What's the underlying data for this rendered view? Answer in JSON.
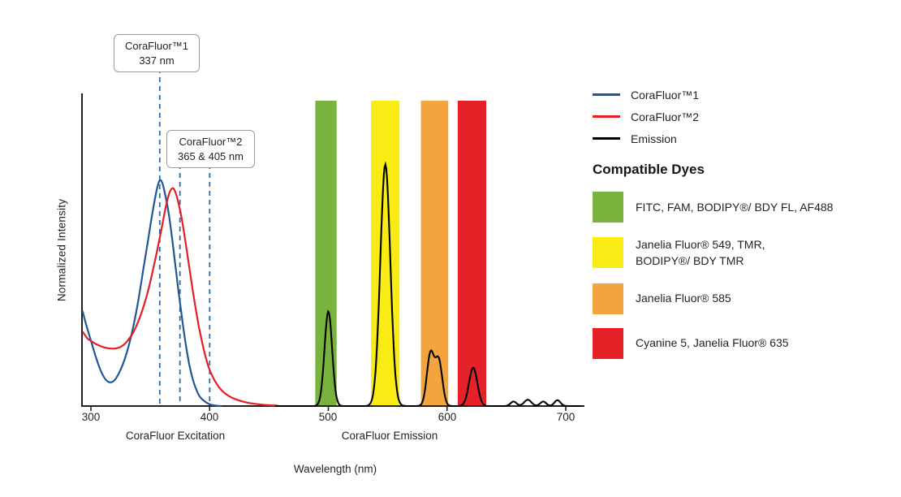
{
  "chart_data": {
    "type": "line",
    "xlabel": "Wavelength (nm)",
    "ylabel": "Normalized Intensity",
    "x_ticks": [
      "300",
      "400",
      "500",
      "600",
      "700"
    ],
    "x_tick_values": [
      300,
      400,
      500,
      600,
      700
    ],
    "xlim": [
      292,
      716
    ],
    "ylim": [
      0,
      1.38
    ],
    "grid": false,
    "marker_color": "#2e6ba6",
    "axis_color": "#231f20",
    "axis_captions": [
      {
        "text": "CoraFluor Excitation",
        "x_nm": 371
      },
      {
        "text": "CoraFluor Emission",
        "x_nm": 552
      }
    ],
    "callouts": [
      {
        "title": "CoraFluor™1",
        "subtitle": "337 nm",
        "line_x": [
          358
        ]
      },
      {
        "title": "CoraFluor™2",
        "subtitle": "365 & 405 nm",
        "line_x": [
          375,
          400
        ]
      }
    ],
    "bands": [
      {
        "name": "FITC/FAM/BODIPY/AF488 window",
        "range": [
          489,
          507
        ],
        "color": "#78b33e"
      },
      {
        "name": "JF549/TMR window",
        "range": [
          536,
          560
        ],
        "color": "#f8ec14"
      },
      {
        "name": "JF585 window",
        "range": [
          578,
          601
        ],
        "color": "#f4a43c"
      },
      {
        "name": "Cy5/JF635 window",
        "range": [
          609,
          633
        ],
        "color": "#e62229"
      }
    ],
    "series": [
      {
        "name": "CoraFluor™1",
        "color": "#1f5796",
        "points": [
          [
            293,
            0.42
          ],
          [
            296,
            0.36
          ],
          [
            300,
            0.29
          ],
          [
            304,
            0.22
          ],
          [
            308,
            0.16
          ],
          [
            312,
            0.12
          ],
          [
            316,
            0.105
          ],
          [
            320,
            0.115
          ],
          [
            324,
            0.15
          ],
          [
            328,
            0.2
          ],
          [
            332,
            0.27
          ],
          [
            336,
            0.36
          ],
          [
            340,
            0.47
          ],
          [
            344,
            0.6
          ],
          [
            348,
            0.73
          ],
          [
            351,
            0.83
          ],
          [
            354,
            0.92
          ],
          [
            356,
            0.97
          ],
          [
            358,
            1.0
          ],
          [
            360,
            0.99
          ],
          [
            362,
            0.95
          ],
          [
            365,
            0.87
          ],
          [
            368,
            0.76
          ],
          [
            371,
            0.63
          ],
          [
            374,
            0.5
          ],
          [
            377,
            0.38
          ],
          [
            380,
            0.27
          ],
          [
            383,
            0.18
          ],
          [
            386,
            0.115
          ],
          [
            389,
            0.07
          ],
          [
            392,
            0.04
          ],
          [
            396,
            0.02
          ],
          [
            400,
            0.008
          ],
          [
            405,
            0.002
          ],
          [
            410,
            0
          ]
        ]
      },
      {
        "name": "CoraFluor™2",
        "color": "#e31e26",
        "points": [
          [
            293,
            0.33
          ],
          [
            297,
            0.3
          ],
          [
            301,
            0.285
          ],
          [
            306,
            0.27
          ],
          [
            311,
            0.26
          ],
          [
            316,
            0.255
          ],
          [
            321,
            0.255
          ],
          [
            326,
            0.265
          ],
          [
            331,
            0.29
          ],
          [
            336,
            0.33
          ],
          [
            341,
            0.39
          ],
          [
            346,
            0.47
          ],
          [
            350,
            0.55
          ],
          [
            354,
            0.645
          ],
          [
            357,
            0.72
          ],
          [
            360,
            0.8
          ],
          [
            363,
            0.88
          ],
          [
            365,
            0.925
          ],
          [
            367,
            0.955
          ],
          [
            369,
            0.965
          ],
          [
            371,
            0.95
          ],
          [
            373,
            0.915
          ],
          [
            376,
            0.845
          ],
          [
            379,
            0.75
          ],
          [
            382,
            0.645
          ],
          [
            385,
            0.54
          ],
          [
            388,
            0.44
          ],
          [
            391,
            0.35
          ],
          [
            394,
            0.275
          ],
          [
            397,
            0.21
          ],
          [
            400,
            0.16
          ],
          [
            404,
            0.115
          ],
          [
            408,
            0.083
          ],
          [
            412,
            0.06
          ],
          [
            417,
            0.042
          ],
          [
            422,
            0.03
          ],
          [
            428,
            0.02
          ],
          [
            434,
            0.013
          ],
          [
            441,
            0.008
          ],
          [
            449,
            0.004
          ],
          [
            458,
            0.001
          ]
        ]
      },
      {
        "name": "Emission",
        "color": "#000000",
        "peaks": [
          {
            "center": 500,
            "height": 0.42,
            "sigma": 3.2
          },
          {
            "center": 548,
            "height": 1.07,
            "sigma": 4.2
          },
          {
            "center": 586,
            "height": 0.23,
            "sigma": 3.0
          },
          {
            "center": 593,
            "height": 0.2,
            "sigma": 3.0
          },
          {
            "center": 622,
            "height": 0.17,
            "sigma": 3.5
          },
          {
            "center": 656,
            "height": 0.02,
            "sigma": 2.5
          },
          {
            "center": 668,
            "height": 0.028,
            "sigma": 3.0
          },
          {
            "center": 681,
            "height": 0.02,
            "sigma": 2.5
          },
          {
            "center": 693,
            "height": 0.026,
            "sigma": 2.5
          }
        ]
      }
    ]
  },
  "legend": {
    "entries": [
      {
        "label": "CoraFluor™1",
        "color": "#1f5796"
      },
      {
        "label": "CoraFluor™2",
        "color": "#e31e26"
      },
      {
        "label": "Emission",
        "color": "#000000"
      }
    ],
    "dyes_heading": "Compatible Dyes",
    "dyes": [
      {
        "label": "FITC, FAM, BODIPY®/ BDY FL, AF488",
        "color": "#78b33e"
      },
      {
        "label": "Janelia Fluor® 549, TMR,\nBODIPY®/ BDY TMR",
        "color": "#f8ec14"
      },
      {
        "label": "Janelia Fluor® 585",
        "color": "#f4a43c"
      },
      {
        "label": "Cyanine 5, Janelia Fluor® 635",
        "color": "#e62229"
      }
    ]
  }
}
